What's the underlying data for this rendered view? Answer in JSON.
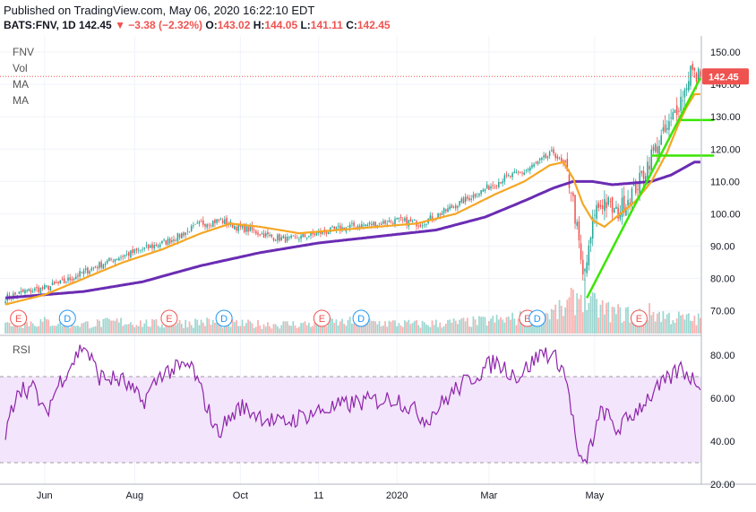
{
  "header": {
    "published": "Published on TradingView.com, May 06, 2020 16:22:10 EDT",
    "symbol": "BATS:FNV, 1D",
    "last": "142.45",
    "change": "▼ −3.38 (−2.32%)",
    "o_label": "O:",
    "o": "143.02",
    "h_label": "H:",
    "h": "144.05",
    "l_label": "L:",
    "l": "141.11",
    "c_label": "C:",
    "c": "142.45"
  },
  "legend": {
    "symbol": "FNV",
    "vol": "Vol",
    "ma1": "MA",
    "ma2": "MA",
    "rsi": "RSI"
  },
  "price_badge": "142.45",
  "colors": {
    "up": "#26a69a",
    "down": "#ef5350",
    "ma_fast": "#f5a623",
    "ma_slow": "#6a2cb3",
    "rsi": "#8e24aa",
    "trend": "#39e600"
  },
  "chart_data": {
    "type": "candlestick",
    "x_tick_labels": [
      "Jun",
      "Aug",
      "Oct",
      "11",
      "2020",
      "Mar",
      "May"
    ],
    "price_axis": {
      "ticks": [
        "150.00",
        "140.00",
        "130.00",
        "120.00",
        "110.00",
        "100.00",
        "90.00",
        "80.00",
        "70.00"
      ],
      "range": [
        63,
        155
      ]
    },
    "rsi_axis": {
      "ticks": [
        "80.00",
        "60.00",
        "40.00",
        "20.00"
      ],
      "range": [
        20,
        85
      ],
      "band": [
        30,
        70
      ]
    },
    "events": [
      {
        "label": "E",
        "x": "May"
      },
      {
        "label": "D",
        "x": "Jun"
      },
      {
        "label": "E",
        "x": "Aug"
      },
      {
        "label": "D",
        "x": "Sep"
      },
      {
        "label": "E",
        "x": "Nov"
      },
      {
        "label": "D",
        "x": "Dec"
      },
      {
        "label": "E",
        "x": "Mar"
      },
      {
        "label": "D",
        "x": "Mar"
      },
      {
        "label": "E",
        "x": "May"
      }
    ],
    "close_key": [
      [
        0,
        74
      ],
      [
        10,
        76
      ],
      [
        20,
        77
      ],
      [
        30,
        79
      ],
      [
        40,
        82
      ],
      [
        55,
        86
      ],
      [
        70,
        89
      ],
      [
        85,
        92
      ],
      [
        100,
        97
      ],
      [
        110,
        98
      ],
      [
        118,
        96
      ],
      [
        125,
        95
      ],
      [
        135,
        93
      ],
      [
        145,
        92
      ],
      [
        160,
        94
      ],
      [
        175,
        96
      ],
      [
        190,
        97
      ],
      [
        200,
        98
      ],
      [
        212,
        97
      ],
      [
        225,
        101
      ],
      [
        240,
        106
      ],
      [
        255,
        111
      ],
      [
        265,
        113
      ],
      [
        275,
        117
      ],
      [
        280,
        119
      ],
      [
        285,
        115
      ],
      [
        289,
        108
      ],
      [
        292,
        95
      ],
      [
        295,
        80
      ],
      [
        298,
        88
      ],
      [
        301,
        101
      ],
      [
        306,
        104
      ],
      [
        312,
        100
      ],
      [
        318,
        105
      ],
      [
        324,
        110
      ],
      [
        330,
        118
      ],
      [
        335,
        123
      ],
      [
        339,
        127
      ],
      [
        343,
        133
      ],
      [
        347,
        138
      ],
      [
        350,
        145
      ],
      [
        352,
        142.45
      ]
    ],
    "volume_key": [
      [
        0,
        4
      ],
      [
        20,
        5
      ],
      [
        40,
        4
      ],
      [
        60,
        5
      ],
      [
        80,
        4
      ],
      [
        100,
        5
      ],
      [
        120,
        4
      ],
      [
        150,
        4
      ],
      [
        180,
        5
      ],
      [
        210,
        4
      ],
      [
        240,
        5
      ],
      [
        270,
        7
      ],
      [
        285,
        10
      ],
      [
        290,
        14
      ],
      [
        295,
        18
      ],
      [
        300,
        12
      ],
      [
        310,
        9
      ],
      [
        320,
        8
      ],
      [
        330,
        9
      ],
      [
        340,
        7
      ],
      [
        352,
        6
      ]
    ],
    "rsi_key": [
      [
        0,
        42
      ],
      [
        6,
        65
      ],
      [
        15,
        64
      ],
      [
        20,
        52
      ],
      [
        28,
        68
      ],
      [
        40,
        85
      ],
      [
        48,
        70
      ],
      [
        60,
        68
      ],
      [
        70,
        58
      ],
      [
        80,
        72
      ],
      [
        95,
        75
      ],
      [
        108,
        44
      ],
      [
        120,
        56
      ],
      [
        140,
        48
      ],
      [
        160,
        54
      ],
      [
        180,
        58
      ],
      [
        200,
        60
      ],
      [
        215,
        50
      ],
      [
        230,
        64
      ],
      [
        250,
        77
      ],
      [
        262,
        70
      ],
      [
        275,
        82
      ],
      [
        284,
        76
      ],
      [
        288,
        62
      ],
      [
        292,
        36
      ],
      [
        295,
        27
      ],
      [
        299,
        38
      ],
      [
        305,
        55
      ],
      [
        312,
        45
      ],
      [
        320,
        52
      ],
      [
        328,
        60
      ],
      [
        338,
        68
      ],
      [
        345,
        74
      ],
      [
        350,
        70
      ],
      [
        352,
        68
      ]
    ],
    "ma_fast_key": [
      [
        0,
        72
      ],
      [
        20,
        75
      ],
      [
        40,
        80
      ],
      [
        60,
        85
      ],
      [
        80,
        89
      ],
      [
        100,
        94
      ],
      [
        115,
        97
      ],
      [
        130,
        96
      ],
      [
        150,
        94
      ],
      [
        170,
        95
      ],
      [
        190,
        96
      ],
      [
        210,
        97
      ],
      [
        230,
        100
      ],
      [
        250,
        106
      ],
      [
        265,
        110
      ],
      [
        278,
        115
      ],
      [
        285,
        116
      ],
      [
        290,
        111
      ],
      [
        295,
        103
      ],
      [
        300,
        98
      ],
      [
        306,
        96
      ],
      [
        314,
        100
      ],
      [
        322,
        104
      ],
      [
        330,
        110
      ],
      [
        338,
        119
      ],
      [
        344,
        128
      ],
      [
        348,
        133
      ],
      [
        352,
        137
      ]
    ],
    "ma_slow_key": [
      [
        0,
        74
      ],
      [
        40,
        76
      ],
      [
        70,
        79
      ],
      [
        100,
        84
      ],
      [
        130,
        88
      ],
      [
        160,
        91
      ],
      [
        190,
        93
      ],
      [
        220,
        95
      ],
      [
        245,
        99
      ],
      [
        265,
        104
      ],
      [
        280,
        108
      ],
      [
        290,
        110
      ],
      [
        300,
        110
      ],
      [
        310,
        109
      ],
      [
        320,
        109.5
      ],
      [
        330,
        110
      ],
      [
        340,
        112
      ],
      [
        352,
        116
      ]
    ],
    "trendlines": [
      {
        "from": [
          297,
          74
        ],
        "to": [
          355,
          142
        ]
      },
      {
        "from": [
          345,
          129
        ],
        "to": [
          362,
          129
        ]
      },
      {
        "from": [
          330,
          118
        ],
        "to": [
          362,
          118
        ]
      }
    ]
  }
}
